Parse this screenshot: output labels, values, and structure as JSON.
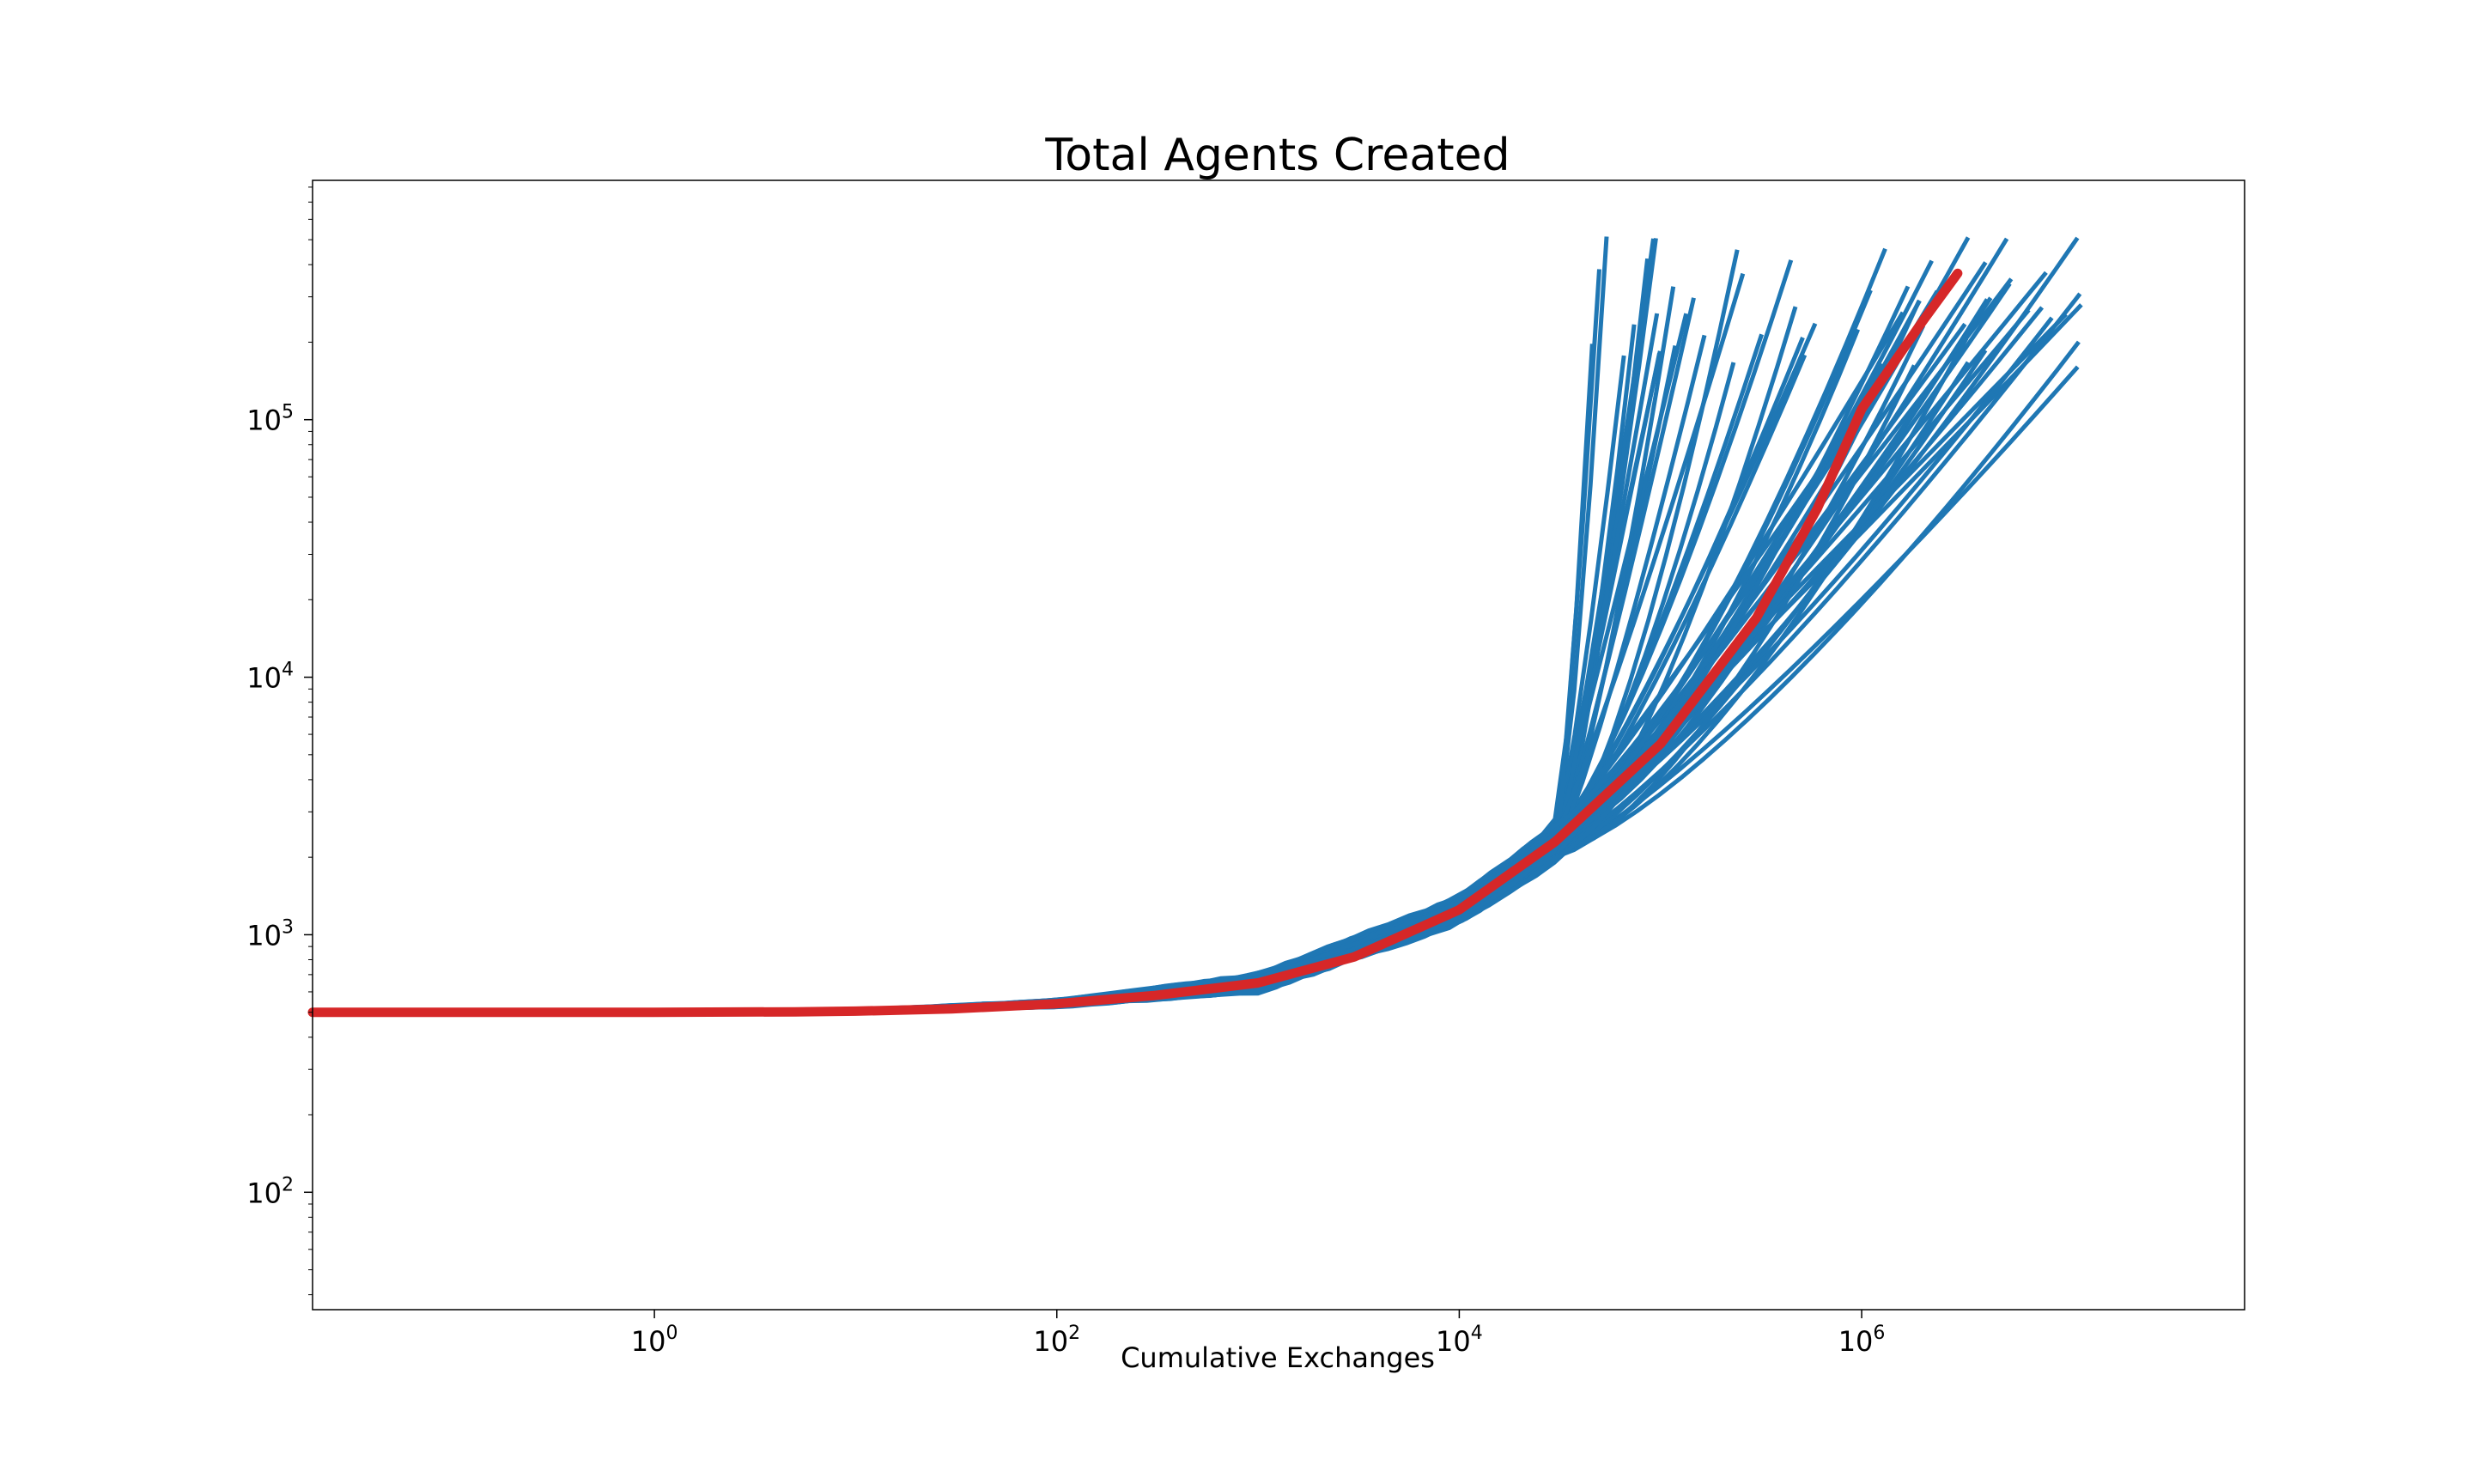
{
  "chart_data": {
    "type": "line",
    "title": "Total Agents Created",
    "xlabel": "Cumulative Exchanges",
    "ylabel": "",
    "x_scale": "log",
    "y_scale": "log",
    "xlim": [
      0.02,
      80000000
    ],
    "ylim": [
      35,
      850000
    ],
    "grid": false,
    "legend": "none",
    "x_ticks": [
      {
        "value": 1,
        "base": "10",
        "exp": "0"
      },
      {
        "value": 100,
        "base": "10",
        "exp": "2"
      },
      {
        "value": 10000,
        "base": "10",
        "exp": "4"
      },
      {
        "value": 1000000,
        "base": "10",
        "exp": "6"
      }
    ],
    "y_ticks": [
      {
        "value": 100,
        "base": "10",
        "exp": "2"
      },
      {
        "value": 1000,
        "base": "10",
        "exp": "3"
      },
      {
        "value": 10000,
        "base": "10",
        "exp": "4"
      },
      {
        "value": 100000,
        "base": "10",
        "exp": "5"
      }
    ],
    "colors": {
      "runs": "#1f77b4",
      "mean": "#d62728"
    },
    "mean_series": {
      "x": [
        0.02,
        0.1,
        1,
        5,
        10,
        30,
        100,
        300,
        1000,
        3000,
        10000,
        30000,
        100000,
        300000,
        600000,
        1000000,
        2000000,
        3000000
      ],
      "y": [
        500,
        500,
        500,
        502,
        505,
        515,
        540,
        580,
        650,
        820,
        1250,
        2300,
        5500,
        17000,
        45000,
        110000,
        240000,
        370000
      ]
    },
    "run_band": {
      "x_start": 0.02,
      "start_y": 500,
      "early_mid_x": [
        1,
        10,
        100,
        1000,
        10000,
        30000
      ],
      "early_mid_y": [
        500,
        505,
        540,
        650,
        1250,
        2300
      ],
      "early_spread_frac": [
        0.0,
        0.02,
        0.06,
        0.15,
        0.22,
        0.3
      ],
      "end_x_min": 45000,
      "end_x_max": 15000000,
      "end_y_min": 160000,
      "end_y_max": 540000,
      "run_count": 60
    }
  }
}
